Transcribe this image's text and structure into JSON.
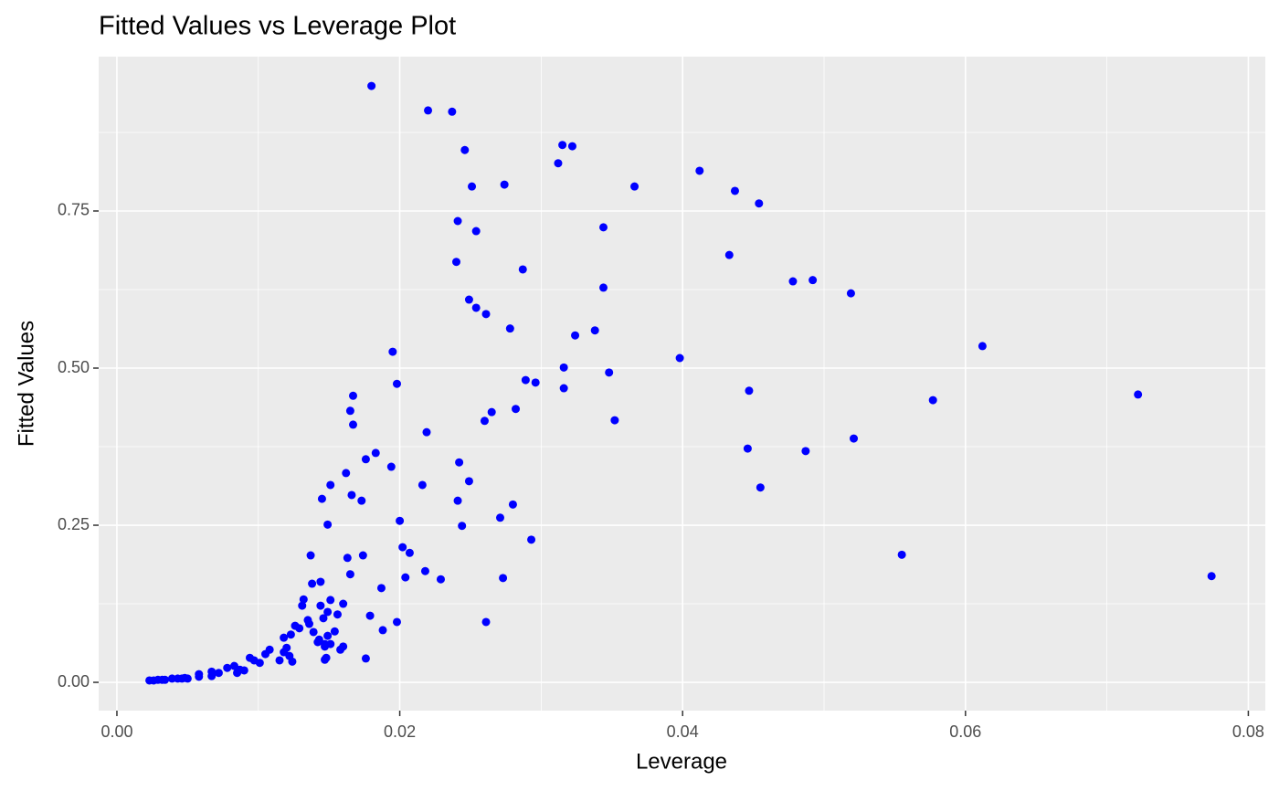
{
  "chart_data": {
    "type": "scatter",
    "title": "Fitted Values vs Leverage Plot",
    "x_label": "Leverage",
    "y_label": "Fitted Values",
    "color": "#0000ff",
    "grid": true,
    "xlim": [
      -0.00129,
      0.0812
    ],
    "ylim": [
      -0.045,
      0.9956
    ],
    "xticks": [
      {
        "value": 0,
        "label": "0.00"
      },
      {
        "value": 0.02,
        "label": "0.02"
      },
      {
        "value": 0.04,
        "label": "0.04"
      },
      {
        "value": 0.06,
        "label": "0.06"
      },
      {
        "value": 0.08,
        "label": "0.08"
      }
    ],
    "yticks": [
      {
        "value": 0,
        "label": "0.00"
      },
      {
        "value": 0.25,
        "label": "0.25"
      },
      {
        "value": 0.5,
        "label": "0.50"
      },
      {
        "value": 0.75,
        "label": "0.75"
      }
    ],
    "x": [
      0.018,
      0.022,
      0.0237,
      0.0315,
      0.0322,
      0.0246,
      0.0312,
      0.0412,
      0.0251,
      0.0274,
      0.0366,
      0.0437,
      0.0454,
      0.0241,
      0.0254,
      0.0344,
      0.0433,
      0.024,
      0.0287,
      0.0478,
      0.0492,
      0.0519,
      0.0344,
      0.0249,
      0.0254,
      0.0261,
      0.0278,
      0.0338,
      0.0324,
      0.0612,
      0.0195,
      0.0398,
      0.0316,
      0.0348,
      0.0289,
      0.0296,
      0.0198,
      0.0316,
      0.0447,
      0.0722,
      0.0167,
      0.0577,
      0.0165,
      0.0265,
      0.0282,
      0.0352,
      0.026,
      0.0167,
      0.0219,
      0.0521,
      0.0446,
      0.0487,
      0.0183,
      0.0176,
      0.0242,
      0.0194,
      0.0162,
      0.0249,
      0.0151,
      0.0216,
      0.0455,
      0.0166,
      0.0145,
      0.0173,
      0.0241,
      0.028,
      0.0271,
      0.02,
      0.0149,
      0.0244,
      0.0293,
      0.0202,
      0.0207,
      0.0137,
      0.0174,
      0.0555,
      0.0163,
      0.0218,
      0.0165,
      0.0774,
      0.0273,
      0.0204,
      0.0229,
      0.0138,
      0.0144,
      0.0187,
      0.0132,
      0.0151,
      0.0144,
      0.0131,
      0.016,
      0.0149,
      0.0156,
      0.0179,
      0.0135,
      0.0146,
      0.0136,
      0.0198,
      0.0261,
      0.0126,
      0.0129,
      0.0188,
      0.0154,
      0.0139,
      0.0123,
      0.0149,
      0.0118,
      0.0143,
      0.0142,
      0.0147,
      0.0151,
      0.0147,
      0.016,
      0.0158,
      0.0108,
      0.012,
      0.0118,
      0.0105,
      0.0122,
      0.0148,
      0.0147,
      0.0176,
      0.0115,
      0.0124,
      0.0094,
      0.0097,
      0.0101,
      0.0083,
      0.0078,
      0.0087,
      0.009,
      0.0067,
      0.0072,
      0.0085,
      0.0058,
      0.0067,
      0.0058,
      0.0048,
      0.0043,
      0.005,
      0.0039,
      0.0034,
      0.0029,
      0.0026,
      0.0023,
      0.0032,
      0.0046
    ],
    "y": [
      0.949,
      0.91,
      0.908,
      0.855,
      0.853,
      0.847,
      0.826,
      0.814,
      0.789,
      0.792,
      0.789,
      0.782,
      0.762,
      0.734,
      0.718,
      0.724,
      0.68,
      0.669,
      0.657,
      0.638,
      0.64,
      0.619,
      0.628,
      0.609,
      0.596,
      0.586,
      0.563,
      0.56,
      0.552,
      0.535,
      0.526,
      0.516,
      0.501,
      0.493,
      0.481,
      0.477,
      0.475,
      0.468,
      0.464,
      0.458,
      0.456,
      0.449,
      0.432,
      0.43,
      0.435,
      0.417,
      0.416,
      0.41,
      0.398,
      0.388,
      0.372,
      0.368,
      0.365,
      0.355,
      0.35,
      0.343,
      0.333,
      0.32,
      0.314,
      0.314,
      0.31,
      0.298,
      0.292,
      0.289,
      0.289,
      0.283,
      0.262,
      0.257,
      0.251,
      0.249,
      0.227,
      0.215,
      0.206,
      0.202,
      0.202,
      0.203,
      0.198,
      0.177,
      0.172,
      0.169,
      0.166,
      0.167,
      0.164,
      0.157,
      0.16,
      0.15,
      0.132,
      0.131,
      0.122,
      0.122,
      0.125,
      0.112,
      0.108,
      0.106,
      0.099,
      0.102,
      0.093,
      0.096,
      0.096,
      0.09,
      0.086,
      0.083,
      0.081,
      0.08,
      0.076,
      0.074,
      0.071,
      0.068,
      0.064,
      0.061,
      0.061,
      0.057,
      0.057,
      0.052,
      0.052,
      0.055,
      0.048,
      0.045,
      0.042,
      0.039,
      0.036,
      0.038,
      0.035,
      0.033,
      0.039,
      0.035,
      0.031,
      0.026,
      0.023,
      0.02,
      0.019,
      0.017,
      0.015,
      0.015,
      0.013,
      0.01,
      0.009,
      0.007,
      0.006,
      0.006,
      0.006,
      0.004,
      0.004,
      0.003,
      0.003,
      0.004,
      0.006
    ]
  }
}
